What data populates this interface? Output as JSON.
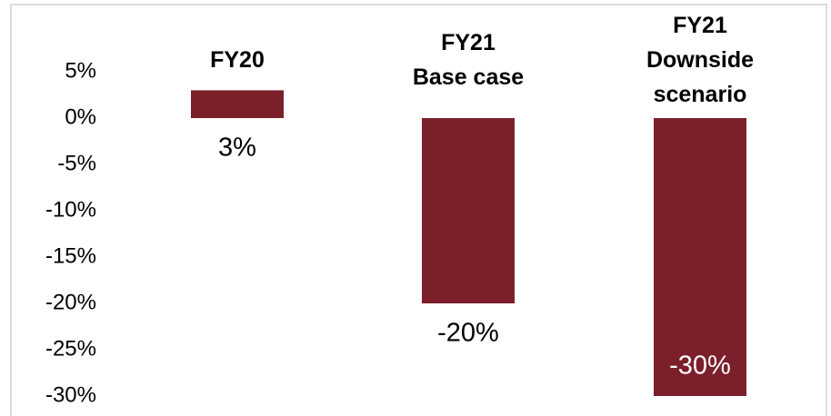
{
  "chart_data": {
    "type": "bar",
    "categories": [
      [
        "FY20"
      ],
      [
        "FY21",
        "Base case"
      ],
      [
        "FY21",
        "Downside",
        "scenario"
      ]
    ],
    "values": [
      3,
      -20,
      -30
    ],
    "value_labels": [
      "3%",
      "-20%",
      "-30%"
    ],
    "color": "#7b1f2b",
    "ylim": [
      -30,
      5
    ],
    "yticks": [
      {
        "value": 5,
        "label": "5%"
      },
      {
        "value": 0,
        "label": "0%"
      },
      {
        "value": -5,
        "label": "-5%"
      },
      {
        "value": -10,
        "label": "-10%"
      },
      {
        "value": -15,
        "label": "-15%"
      },
      {
        "value": -20,
        "label": "-20%"
      },
      {
        "value": -25,
        "label": "-25%"
      },
      {
        "value": -30,
        "label": "-30%"
      }
    ],
    "grid": false
  }
}
